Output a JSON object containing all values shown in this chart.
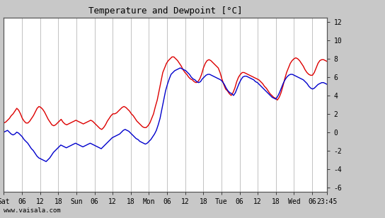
{
  "title": "Temperature and Dewpoint [°C]",
  "ylabel_right_ticks": [
    -6,
    -4,
    -2,
    0,
    2,
    4,
    6,
    8,
    10,
    12
  ],
  "ylim": [
    -6.5,
    12.5
  ],
  "xlim": [
    0,
    107
  ],
  "xtick_positions": [
    0,
    6,
    12,
    18,
    24,
    30,
    36,
    42,
    48,
    54,
    60,
    66,
    72,
    78,
    84,
    90,
    96,
    102,
    107
  ],
  "xtick_labels": [
    "Sat",
    "06",
    "12",
    "18",
    "Sun",
    "06",
    "12",
    "18",
    "Mon",
    "06",
    "12",
    "18",
    "Tue",
    "06",
    "12",
    "18",
    "Wed",
    "06",
    "23:45"
  ],
  "watermark": "www.vaisala.com",
  "bg_color": "#c8c8c8",
  "plot_bg_color": "#ffffff",
  "grid_color": "#aaaaaa",
  "temp_color": "#dd0000",
  "dewp_color": "#0000cc",
  "line_width": 1.0,
  "temp_data": [
    1.0,
    1.1,
    1.3,
    1.5,
    1.8,
    2.0,
    2.3,
    2.6,
    2.4,
    2.0,
    1.5,
    1.2,
    1.0,
    1.0,
    1.2,
    1.5,
    1.8,
    2.2,
    2.6,
    2.8,
    2.7,
    2.5,
    2.2,
    1.8,
    1.4,
    1.1,
    0.8,
    0.7,
    0.8,
    1.0,
    1.2,
    1.4,
    1.1,
    0.9,
    0.8,
    0.9,
    1.0,
    1.1,
    1.2,
    1.3,
    1.2,
    1.1,
    1.0,
    0.9,
    1.0,
    1.1,
    1.2,
    1.3,
    1.2,
    1.0,
    0.8,
    0.6,
    0.4,
    0.3,
    0.5,
    0.8,
    1.2,
    1.5,
    1.8,
    2.0,
    2.0,
    2.1,
    2.3,
    2.5,
    2.7,
    2.8,
    2.7,
    2.5,
    2.3,
    2.0,
    1.8,
    1.5,
    1.2,
    1.0,
    0.8,
    0.6,
    0.5,
    0.5,
    0.7,
    1.0,
    1.5,
    2.0,
    2.8,
    3.5,
    4.5,
    5.5,
    6.5,
    7.0,
    7.5,
    7.8,
    8.0,
    8.2,
    8.2,
    8.0,
    7.8,
    7.5,
    7.2,
    6.8,
    6.5,
    6.3,
    6.0,
    5.8,
    5.7,
    5.5,
    5.4,
    5.5,
    5.8,
    6.3,
    7.0,
    7.5,
    7.8,
    7.9,
    7.8,
    7.6,
    7.4,
    7.2,
    7.0,
    6.5,
    5.8,
    5.2,
    4.7,
    4.5,
    4.2,
    4.0,
    4.3,
    4.8,
    5.5,
    6.0,
    6.3,
    6.5,
    6.5,
    6.4,
    6.3,
    6.2,
    6.1,
    6.0,
    5.9,
    5.8,
    5.7,
    5.5,
    5.3,
    5.0,
    4.8,
    4.5,
    4.2,
    4.0,
    3.8,
    3.7,
    3.5,
    3.8,
    4.3,
    5.0,
    5.8,
    6.5,
    7.0,
    7.5,
    7.8,
    8.0,
    8.1,
    8.0,
    7.8,
    7.5,
    7.2,
    6.8,
    6.5,
    6.3,
    6.2,
    6.2,
    6.5,
    7.0,
    7.5,
    7.8,
    7.9,
    7.9,
    7.8,
    7.7
  ],
  "dewp_data": [
    0.0,
    0.1,
    0.2,
    0.0,
    -0.2,
    -0.3,
    -0.2,
    0.0,
    -0.1,
    -0.3,
    -0.5,
    -0.8,
    -1.0,
    -1.2,
    -1.5,
    -1.8,
    -2.0,
    -2.3,
    -2.6,
    -2.8,
    -2.9,
    -3.0,
    -3.1,
    -3.2,
    -3.0,
    -2.8,
    -2.5,
    -2.2,
    -2.0,
    -1.8,
    -1.6,
    -1.4,
    -1.5,
    -1.6,
    -1.7,
    -1.6,
    -1.5,
    -1.4,
    -1.3,
    -1.2,
    -1.3,
    -1.4,
    -1.5,
    -1.6,
    -1.5,
    -1.4,
    -1.3,
    -1.2,
    -1.3,
    -1.4,
    -1.5,
    -1.6,
    -1.7,
    -1.8,
    -1.6,
    -1.4,
    -1.2,
    -1.0,
    -0.8,
    -0.6,
    -0.5,
    -0.4,
    -0.3,
    -0.2,
    0.0,
    0.2,
    0.3,
    0.2,
    0.1,
    -0.1,
    -0.3,
    -0.5,
    -0.7,
    -0.8,
    -1.0,
    -1.1,
    -1.2,
    -1.3,
    -1.2,
    -1.0,
    -0.8,
    -0.5,
    -0.2,
    0.2,
    0.8,
    1.5,
    2.5,
    3.5,
    4.5,
    5.2,
    5.8,
    6.3,
    6.5,
    6.7,
    6.8,
    6.9,
    7.0,
    6.9,
    6.8,
    6.7,
    6.5,
    6.3,
    6.0,
    5.8,
    5.7,
    5.5,
    5.4,
    5.5,
    5.8,
    6.0,
    6.2,
    6.3,
    6.3,
    6.2,
    6.1,
    6.0,
    5.9,
    5.8,
    5.7,
    5.5,
    5.2,
    4.8,
    4.5,
    4.3,
    4.2,
    4.0,
    4.3,
    4.8,
    5.3,
    5.7,
    6.0,
    6.1,
    6.1,
    6.0,
    5.9,
    5.8,
    5.7,
    5.5,
    5.4,
    5.2,
    5.0,
    4.8,
    4.6,
    4.4,
    4.2,
    4.0,
    3.8,
    3.7,
    3.6,
    3.9,
    4.3,
    4.8,
    5.3,
    5.7,
    6.0,
    6.2,
    6.3,
    6.3,
    6.2,
    6.1,
    6.0,
    5.9,
    5.8,
    5.7,
    5.5,
    5.3,
    5.0,
    4.8,
    4.7,
    4.8,
    5.0,
    5.2,
    5.3,
    5.4,
    5.4,
    5.3,
    5.2
  ]
}
